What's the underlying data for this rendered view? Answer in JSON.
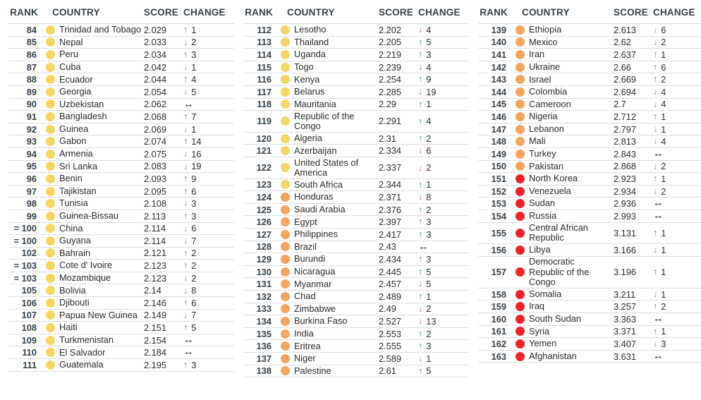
{
  "colors": {
    "tiers": {
      "yellow": "#F5D665",
      "orange": "#F3A45F",
      "red": "#E8242B"
    },
    "change": {
      "up": "#1A9B8F",
      "down": "#E77258",
      "steady": "#1A1A1A"
    },
    "header_text": "#333F48",
    "row_text": "#2B2B2B",
    "divider": "#DEDEDE"
  },
  "icons": {
    "up-arrow": "↑",
    "down-arrow": "↓",
    "steady-arrow": "↔"
  },
  "chart_data": {
    "type": "table",
    "headers": [
      "RANK",
      "COUNTRY",
      "SCORE",
      "CHANGE"
    ],
    "legend_note_tiers": [
      "yellow",
      "orange",
      "red"
    ],
    "columns": [
      {
        "rows": [
          {
            "rank": "84",
            "country": "Trinidad and Tobago",
            "score": "2.029",
            "dir": "up",
            "change": "1",
            "tier": "yellow"
          },
          {
            "rank": "85",
            "country": "Nepal",
            "score": "2.033",
            "dir": "down",
            "change": "2",
            "tier": "yellow"
          },
          {
            "rank": "86",
            "country": "Peru",
            "score": "2.034",
            "dir": "up",
            "change": "3",
            "tier": "yellow"
          },
          {
            "rank": "87",
            "country": "Cuba",
            "score": "2.042",
            "dir": "down",
            "change": "1",
            "tier": "yellow"
          },
          {
            "rank": "88",
            "country": "Ecuador",
            "score": "2.044",
            "dir": "up",
            "change": "4",
            "tier": "yellow"
          },
          {
            "rank": "89",
            "country": "Georgia",
            "score": "2.054",
            "dir": "down",
            "change": "5",
            "tier": "yellow"
          },
          {
            "rank": "90",
            "country": "Uzbekistan",
            "score": "2.062",
            "dir": "steady",
            "change": "",
            "tier": "yellow"
          },
          {
            "rank": "91",
            "country": "Bangladesh",
            "score": "2.068",
            "dir": "up",
            "change": "7",
            "tier": "yellow"
          },
          {
            "rank": "92",
            "country": "Guinea",
            "score": "2.069",
            "dir": "down",
            "change": "1",
            "tier": "yellow"
          },
          {
            "rank": "93",
            "country": "Gabon",
            "score": "2.074",
            "dir": "up",
            "change": "14",
            "tier": "yellow"
          },
          {
            "rank": "94",
            "country": "Armenia",
            "score": "2.075",
            "dir": "down",
            "change": "16",
            "tier": "yellow"
          },
          {
            "rank": "95",
            "country": "Sri Lanka",
            "score": "2.083",
            "dir": "down",
            "change": "19",
            "tier": "yellow"
          },
          {
            "rank": "96",
            "country": "Benin",
            "score": "2.093",
            "dir": "up",
            "change": "9",
            "tier": "yellow"
          },
          {
            "rank": "97",
            "country": "Tajikistan",
            "score": "2.095",
            "dir": "up",
            "change": "6",
            "tier": "yellow"
          },
          {
            "rank": "98",
            "country": "Tunisia",
            "score": "2.108",
            "dir": "down",
            "change": "3",
            "tier": "yellow"
          },
          {
            "rank": "99",
            "country": "Guinea-Bissau",
            "score": "2.113",
            "dir": "up",
            "change": "3",
            "tier": "yellow"
          },
          {
            "rank": "= 100",
            "country": "China",
            "score": "2.114",
            "dir": "down",
            "change": "6",
            "tier": "yellow"
          },
          {
            "rank": "= 100",
            "country": "Guyana",
            "score": "2.114",
            "dir": "down",
            "change": "7",
            "tier": "yellow"
          },
          {
            "rank": "102",
            "country": "Bahrain",
            "score": "2.121",
            "dir": "up",
            "change": "2",
            "tier": "yellow"
          },
          {
            "rank": "= 103",
            "country": "Cote d' Ivoire",
            "score": "2.123",
            "dir": "up",
            "change": "2",
            "tier": "yellow"
          },
          {
            "rank": "= 103",
            "country": "Mozambique",
            "score": "2.123",
            "dir": "down",
            "change": "2",
            "tier": "yellow"
          },
          {
            "rank": "105",
            "country": "Bolivia",
            "score": "2.14",
            "dir": "down",
            "change": "8",
            "tier": "yellow"
          },
          {
            "rank": "106",
            "country": "Djibouti",
            "score": "2.146",
            "dir": "up",
            "change": "6",
            "tier": "yellow"
          },
          {
            "rank": "107",
            "country": "Papua New Guinea",
            "score": "2.149",
            "dir": "down",
            "change": "7",
            "tier": "yellow"
          },
          {
            "rank": "108",
            "country": "Haiti",
            "score": "2.151",
            "dir": "up",
            "change": "5",
            "tier": "yellow"
          },
          {
            "rank": "109",
            "country": "Turkmenistan",
            "score": "2.154",
            "dir": "steady",
            "change": "",
            "tier": "yellow"
          },
          {
            "rank": "110",
            "country": "El Salvador",
            "score": "2.184",
            "dir": "steady",
            "change": "",
            "tier": "yellow"
          },
          {
            "rank": "111",
            "country": "Guatemala",
            "score": "2.195",
            "dir": "up",
            "change": "3",
            "tier": "yellow"
          }
        ]
      },
      {
        "rows": [
          {
            "rank": "112",
            "country": "Lesotho",
            "score": "2.202",
            "dir": "down",
            "change": "4",
            "tier": "yellow"
          },
          {
            "rank": "113",
            "country": "Thailand",
            "score": "2.205",
            "dir": "up",
            "change": "5",
            "tier": "yellow"
          },
          {
            "rank": "114",
            "country": "Uganda",
            "score": "2.219",
            "dir": "up",
            "change": "3",
            "tier": "yellow"
          },
          {
            "rank": "115",
            "country": "Togo",
            "score": "2.239",
            "dir": "down",
            "change": "4",
            "tier": "yellow"
          },
          {
            "rank": "116",
            "country": "Kenya",
            "score": "2.254",
            "dir": "up",
            "change": "9",
            "tier": "yellow"
          },
          {
            "rank": "117",
            "country": "Belarus",
            "score": "2.285",
            "dir": "down",
            "change": "19",
            "tier": "yellow"
          },
          {
            "rank": "118",
            "country": "Mauritania",
            "score": "2.29",
            "dir": "up",
            "change": "1",
            "tier": "yellow"
          },
          {
            "rank": "119",
            "country": "Republic of the Congo",
            "score": "2.291",
            "dir": "up",
            "change": "4",
            "tier": "yellow"
          },
          {
            "rank": "120",
            "country": "Algeria",
            "score": "2.31",
            "dir": "up",
            "change": "2",
            "tier": "yellow"
          },
          {
            "rank": "121",
            "country": "Azerbaijan",
            "score": "2.334",
            "dir": "down",
            "change": "6",
            "tier": "yellow"
          },
          {
            "rank": "122",
            "country": "United States of America",
            "score": "2.337",
            "dir": "down",
            "change": "2",
            "tier": "yellow"
          },
          {
            "rank": "123",
            "country": "South Africa",
            "score": "2.344",
            "dir": "up",
            "change": "1",
            "tier": "yellow"
          },
          {
            "rank": "124",
            "country": "Honduras",
            "score": "2.371",
            "dir": "down",
            "change": "8",
            "tier": "orange"
          },
          {
            "rank": "125",
            "country": "Saudi Arabia",
            "score": "2.376",
            "dir": "up",
            "change": "2",
            "tier": "orange"
          },
          {
            "rank": "126",
            "country": "Egypt",
            "score": "2.397",
            "dir": "up",
            "change": "3",
            "tier": "orange"
          },
          {
            "rank": "127",
            "country": "Philippines",
            "score": "2.417",
            "dir": "up",
            "change": "3",
            "tier": "orange"
          },
          {
            "rank": "128",
            "country": "Brazil",
            "score": "2.43",
            "dir": "steady",
            "change": "",
            "tier": "orange"
          },
          {
            "rank": "129",
            "country": "Burundi",
            "score": "2.434",
            "dir": "up",
            "change": "3",
            "tier": "orange"
          },
          {
            "rank": "130",
            "country": "Nicaragua",
            "score": "2.445",
            "dir": "up",
            "change": "5",
            "tier": "orange"
          },
          {
            "rank": "131",
            "country": "Myanmar",
            "score": "2.457",
            "dir": "down",
            "change": "5",
            "tier": "orange"
          },
          {
            "rank": "132",
            "country": "Chad",
            "score": "2.489",
            "dir": "up",
            "change": "1",
            "tier": "orange"
          },
          {
            "rank": "133",
            "country": "Zimbabwe",
            "score": "2.49",
            "dir": "down",
            "change": "2",
            "tier": "orange"
          },
          {
            "rank": "134",
            "country": "Burkina Faso",
            "score": "2.527",
            "dir": "down",
            "change": "13",
            "tier": "orange"
          },
          {
            "rank": "135",
            "country": "India",
            "score": "2.553",
            "dir": "up",
            "change": "2",
            "tier": "orange"
          },
          {
            "rank": "136",
            "country": "Eritrea",
            "score": "2.555",
            "dir": "up",
            "change": "3",
            "tier": "orange"
          },
          {
            "rank": "137",
            "country": "Niger",
            "score": "2.589",
            "dir": "down",
            "change": "1",
            "tier": "orange"
          },
          {
            "rank": "138",
            "country": "Palestine",
            "score": "2.61",
            "dir": "up",
            "change": "5",
            "tier": "orange"
          }
        ]
      },
      {
        "rows": [
          {
            "rank": "139",
            "country": "Ethiopia",
            "score": "2.613",
            "dir": "down",
            "change": "6",
            "tier": "orange"
          },
          {
            "rank": "140",
            "country": "Mexico",
            "score": "2.62",
            "dir": "down",
            "change": "2",
            "tier": "orange"
          },
          {
            "rank": "141",
            "country": "Iran",
            "score": "2.637",
            "dir": "up",
            "change": "1",
            "tier": "orange"
          },
          {
            "rank": "142",
            "country": "Ukraine",
            "score": "2.66",
            "dir": "up",
            "change": "6",
            "tier": "orange"
          },
          {
            "rank": "143",
            "country": "Israel",
            "score": "2.669",
            "dir": "up",
            "change": "2",
            "tier": "orange"
          },
          {
            "rank": "144",
            "country": "Colombia",
            "score": "2.694",
            "dir": "down",
            "change": "4",
            "tier": "orange"
          },
          {
            "rank": "145",
            "country": "Cameroon",
            "score": "2.7",
            "dir": "down",
            "change": "4",
            "tier": "orange"
          },
          {
            "rank": "146",
            "country": "Nigeria",
            "score": "2.712",
            "dir": "up",
            "change": "1",
            "tier": "orange"
          },
          {
            "rank": "147",
            "country": "Lebanon",
            "score": "2.797",
            "dir": "down",
            "change": "1",
            "tier": "orange"
          },
          {
            "rank": "148",
            "country": "Mali",
            "score": "2.813",
            "dir": "down",
            "change": "4",
            "tier": "orange"
          },
          {
            "rank": "149",
            "country": "Turkey",
            "score": "2.843",
            "dir": "steady",
            "change": "",
            "tier": "orange"
          },
          {
            "rank": "150",
            "country": "Pakistan",
            "score": "2.868",
            "dir": "down",
            "change": "2",
            "tier": "orange"
          },
          {
            "rank": "151",
            "country": "North Korea",
            "score": "2.923",
            "dir": "up",
            "change": "1",
            "tier": "red"
          },
          {
            "rank": "152",
            "country": "Venezuela",
            "score": "2.934",
            "dir": "down",
            "change": "2",
            "tier": "red"
          },
          {
            "rank": "153",
            "country": "Sudan",
            "score": "2.936",
            "dir": "steady",
            "change": "",
            "tier": "red"
          },
          {
            "rank": "154",
            "country": "Russia",
            "score": "2.993",
            "dir": "steady",
            "change": "",
            "tier": "red"
          },
          {
            "rank": "155",
            "country": "Central African Republic",
            "score": "3.131",
            "dir": "up",
            "change": "1",
            "tier": "red"
          },
          {
            "rank": "156",
            "country": "Libya",
            "score": "3.166",
            "dir": "down",
            "change": "1",
            "tier": "red"
          },
          {
            "rank": "157",
            "country": "Democratic Republic of the Congo",
            "score": "3.196",
            "dir": "up",
            "change": "1",
            "tier": "red"
          },
          {
            "rank": "158",
            "country": "Somalia",
            "score": "3.211",
            "dir": "down",
            "change": "1",
            "tier": "red"
          },
          {
            "rank": "159",
            "country": "Iraq",
            "score": "3.257",
            "dir": "up",
            "change": "2",
            "tier": "red"
          },
          {
            "rank": "160",
            "country": "South Sudan",
            "score": "3.363",
            "dir": "steady",
            "change": "",
            "tier": "red"
          },
          {
            "rank": "161",
            "country": "Syria",
            "score": "3.371",
            "dir": "up",
            "change": "1",
            "tier": "red"
          },
          {
            "rank": "162",
            "country": "Yemen",
            "score": "3.407",
            "dir": "down",
            "change": "3",
            "tier": "red"
          },
          {
            "rank": "163",
            "country": "Afghanistan",
            "score": "3.631",
            "dir": "steady",
            "change": "",
            "tier": "red"
          }
        ]
      }
    ]
  }
}
